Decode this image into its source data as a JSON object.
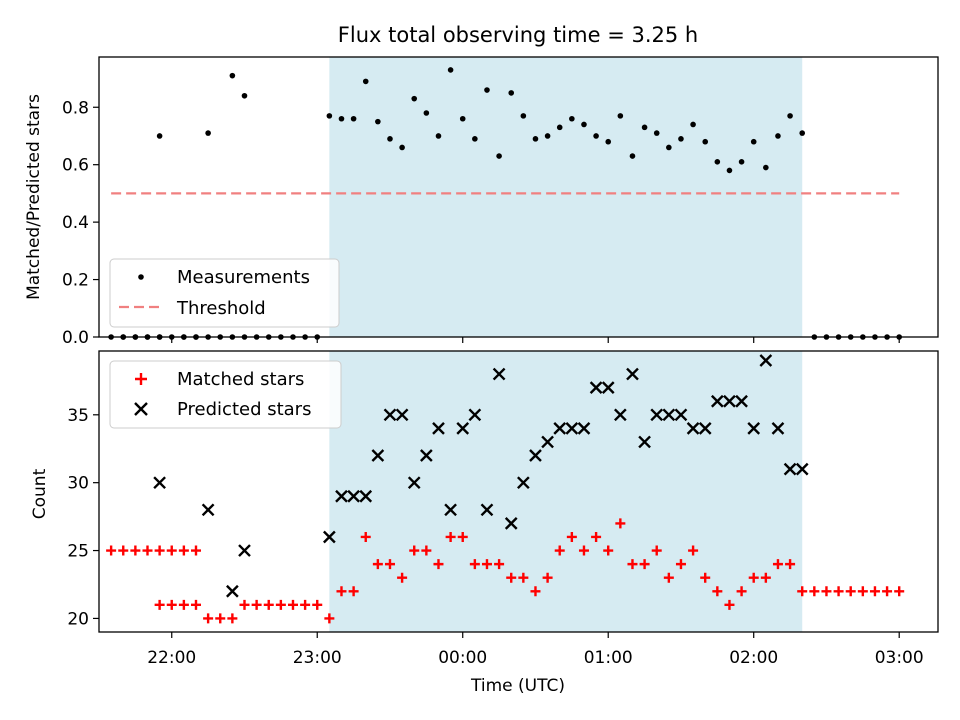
{
  "figure": {
    "title": "Flux total observing time = 3.25 h",
    "xlabel": "Time (UTC)",
    "x_ticks": [
      "22:00",
      "23:00",
      "00:00",
      "01:00",
      "02:00",
      "03:00"
    ],
    "highlight_color": "#add8e6"
  },
  "chart_data": [
    {
      "type": "scatter",
      "ylabel": "Matched/Predicted stars",
      "xlim": [
        "21:30",
        "03:16"
      ],
      "ylim": [
        0,
        0.975
      ],
      "y_ticks": [
        "0.0",
        "0.2",
        "0.4",
        "0.6",
        "0.8"
      ],
      "highlight_span": [
        "23:05",
        "02:20"
      ],
      "legend_position": "lower-left",
      "series": [
        {
          "name": "Measurements",
          "marker": "dot",
          "color": "#000000",
          "x": [
            "21:35",
            "21:40",
            "21:45",
            "21:50",
            "21:55",
            "22:00",
            "22:05",
            "22:10",
            "21:40",
            "21:45",
            "21:50",
            "21:55",
            "22:05",
            "22:10",
            "22:15",
            "22:20",
            "22:25",
            "22:30",
            "22:35",
            "22:40",
            "22:45",
            "22:50",
            "22:55",
            "23:00",
            "23:05",
            "23:10",
            "23:15",
            "23:20",
            "23:25",
            "23:30",
            "23:35",
            "23:40",
            "23:45",
            "23:50",
            "23:55",
            "00:00",
            "00:05",
            "00:10",
            "00:15",
            "00:20",
            "00:25",
            "00:30",
            "00:35",
            "00:40",
            "00:45",
            "00:50",
            "00:55",
            "01:00",
            "01:05",
            "01:10",
            "01:15",
            "01:20",
            "01:25",
            "01:30",
            "01:35",
            "01:40",
            "01:45",
            "01:50",
            "01:55",
            "02:00",
            "02:05",
            "02:10",
            "02:15",
            "02:20",
            "02:25",
            "02:30",
            "02:35",
            "02:40",
            "02:45",
            "02:50",
            "02:55",
            "03:00"
          ],
          "y": [
            0,
            0,
            0,
            0,
            0,
            0,
            0,
            0,
            0,
            0,
            0,
            0,
            0,
            0,
            0,
            0,
            0,
            0,
            0,
            0,
            0,
            0,
            0,
            0,
            0.77,
            0.76,
            0.76,
            0.89,
            0.75,
            0.69,
            0.66,
            0.83,
            0.78,
            0.7,
            0.93,
            0.76,
            0.69,
            0.86,
            0.63,
            0.85,
            0.77,
            0.69,
            0.7,
            0.73,
            0.76,
            0.74,
            0.7,
            0.68,
            0.77,
            0.63,
            0.73,
            0.71,
            0.66,
            0.69,
            0.74,
            0.68,
            0.61,
            0.58,
            0.61,
            0.68,
            0.59,
            0.7,
            0.77,
            0.71,
            0,
            0,
            0,
            0,
            0,
            0,
            0,
            0
          ]
        },
        {
          "name": "Threshold",
          "style": "dashed",
          "color": "#f08080",
          "x": [
            "21:35",
            "03:00"
          ],
          "y": [
            0.5,
            0.5
          ]
        }
      ],
      "extra_points": {
        "x": [
          "21:55",
          "22:15",
          "22:25",
          "22:30"
        ],
        "y": [
          0.7,
          0.71,
          0.91,
          0.84
        ]
      }
    },
    {
      "type": "scatter",
      "ylabel": "Count",
      "xlim": [
        "21:30",
        "03:16"
      ],
      "ylim": [
        19.0,
        39.7
      ],
      "y_ticks": [
        "20",
        "25",
        "30",
        "35"
      ],
      "highlight_span": [
        "23:05",
        "02:20"
      ],
      "legend_position": "upper-left",
      "series": [
        {
          "name": "Matched stars",
          "marker": "plus",
          "color": "#ff0000",
          "x": [
            "21:35",
            "21:40",
            "21:45",
            "21:50",
            "21:55",
            "22:00",
            "22:05",
            "22:10",
            "21:55",
            "22:00",
            "22:05",
            "22:10",
            "22:15",
            "22:20",
            "22:25",
            "22:30",
            "22:35",
            "22:40",
            "22:45",
            "22:50",
            "22:55",
            "23:00",
            "23:05",
            "23:10",
            "23:15",
            "23:20",
            "23:25",
            "23:30",
            "23:35",
            "23:40",
            "23:45",
            "23:50",
            "23:55",
            "00:00",
            "00:05",
            "00:10",
            "00:15",
            "00:20",
            "00:25",
            "00:30",
            "00:35",
            "00:40",
            "00:45",
            "00:50",
            "00:55",
            "01:00",
            "01:05",
            "01:10",
            "01:15",
            "01:20",
            "01:25",
            "01:30",
            "01:35",
            "01:40",
            "01:45",
            "01:50",
            "01:55",
            "02:00",
            "02:05",
            "02:10",
            "02:15",
            "02:20",
            "02:25",
            "02:30",
            "02:35",
            "02:40",
            "02:45",
            "02:50",
            "02:55",
            "03:00"
          ],
          "y": [
            25,
            25,
            25,
            25,
            25,
            25,
            25,
            25,
            21,
            21,
            21,
            21,
            20,
            20,
            20,
            21,
            21,
            21,
            21,
            21,
            21,
            21,
            20,
            22,
            22,
            26,
            24,
            24,
            23,
            25,
            25,
            24,
            26,
            26,
            24,
            24,
            24,
            23,
            23,
            22,
            23,
            25,
            26,
            25,
            26,
            25,
            27,
            24,
            24,
            25,
            23,
            24,
            25,
            23,
            22,
            21,
            22,
            23,
            23,
            24,
            24,
            22,
            22,
            22,
            22,
            22,
            22,
            22,
            22,
            22
          ]
        },
        {
          "name": "Predicted stars",
          "marker": "x",
          "color": "#000000",
          "x": [
            "21:55",
            "22:15",
            "22:25",
            "22:30",
            "23:05",
            "23:10",
            "23:15",
            "23:20",
            "23:25",
            "23:30",
            "23:35",
            "23:40",
            "23:45",
            "23:50",
            "23:55",
            "00:00",
            "00:05",
            "00:10",
            "00:15",
            "00:20",
            "00:25",
            "00:30",
            "00:35",
            "00:40",
            "00:45",
            "00:50",
            "00:55",
            "01:00",
            "01:05",
            "01:10",
            "01:15",
            "01:20",
            "01:25",
            "01:30",
            "01:35",
            "01:40",
            "01:45",
            "01:50",
            "01:55",
            "02:00",
            "02:05",
            "02:10",
            "02:15",
            "02:20"
          ],
          "y": [
            30,
            28,
            22,
            25,
            26,
            29,
            29,
            29,
            32,
            35,
            35,
            30,
            32,
            34,
            28,
            34,
            35,
            28,
            38,
            27,
            30,
            32,
            33,
            34,
            34,
            34,
            37,
            37,
            35,
            38,
            33,
            35,
            35,
            35,
            34,
            34,
            36,
            36,
            36,
            34,
            39,
            34,
            31,
            31
          ]
        }
      ]
    }
  ]
}
